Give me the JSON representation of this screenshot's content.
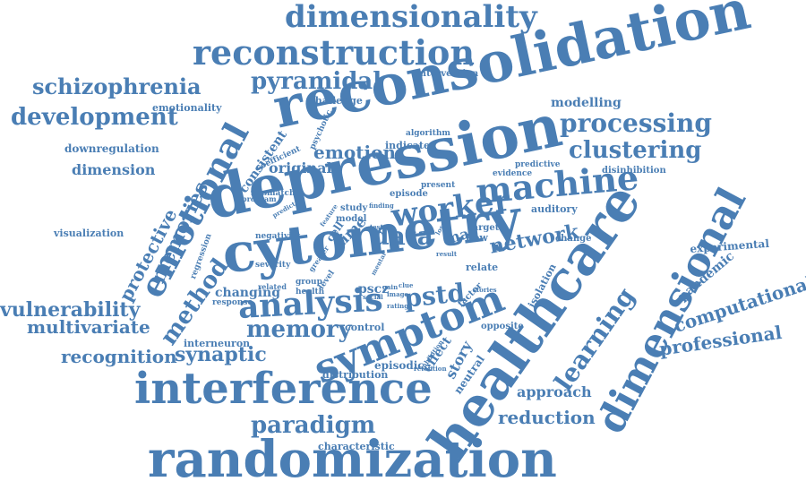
{
  "word_color": "#4a7eb4",
  "words": [
    "reconsolidation",
    "depression",
    "cytometry",
    "healthcare",
    "randomization",
    "interference",
    "symptom",
    "dimensional",
    "emotional",
    "reconstruction",
    "dimensionality",
    "machine",
    "analysis",
    "worker",
    "memory",
    "clustering",
    "processing",
    "learning",
    "development",
    "schizophrenia",
    "pyramidal",
    "synaptic",
    "vulnerability",
    "memories",
    "method",
    "paradigm",
    "network",
    "data",
    "pstd",
    "multivariate",
    "recognition",
    "reduction",
    "professional",
    "computational",
    "protective",
    "emotion",
    "approach",
    "story",
    "pandemic",
    "dimension",
    "downregulation",
    "visualization",
    "modelling",
    "emotionality",
    "experimental",
    "mas",
    "original",
    "consistent",
    "effect",
    "neutral",
    "changing",
    "episodic",
    "pscz",
    "time",
    "flow",
    "cell",
    "interneuron",
    "characteristic",
    "control",
    "distribution",
    "opposite",
    "factor",
    "isolation",
    "relate",
    "challenge",
    "intervention",
    "indicate",
    "algorithm",
    "evidence",
    "predictive",
    "disinhibition",
    "auditory",
    "target",
    "change",
    "model",
    "study",
    "episode",
    "present",
    "coefficient",
    "mismatch",
    "program",
    "psychotic",
    "negativity",
    "severity",
    "related",
    "response",
    "group",
    "health",
    "level",
    "rating",
    "image",
    "social",
    "gain",
    "clue",
    "loss",
    "result",
    "stories",
    "regression",
    "greater",
    "feature",
    "finding",
    "predict",
    "mental",
    "inhibition",
    "retention",
    "test"
  ]
}
